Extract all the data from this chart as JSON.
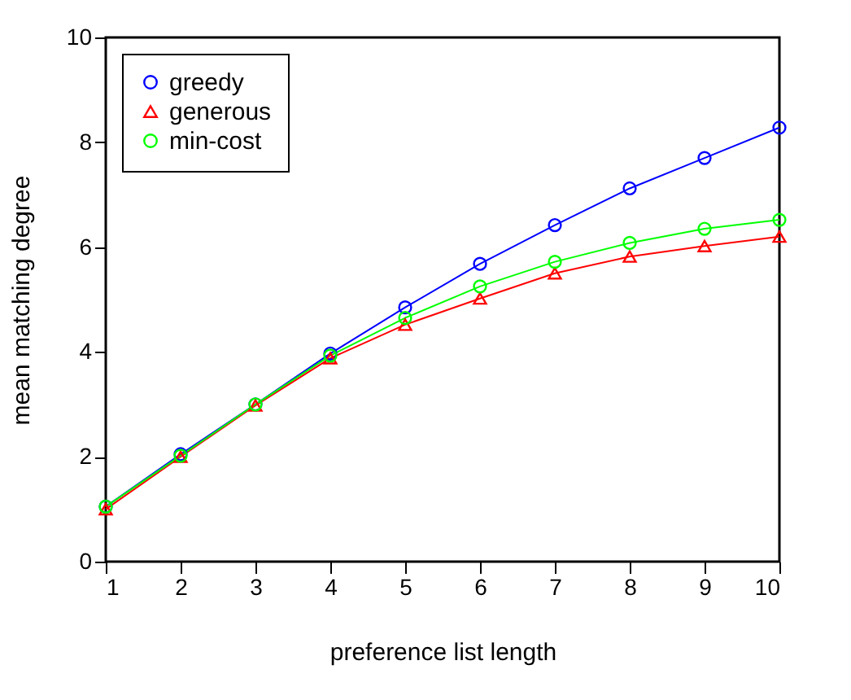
{
  "chart_data": {
    "type": "line",
    "xlabel": "preference list length",
    "ylabel": "mean matching degree",
    "x": [
      1,
      2,
      3,
      4,
      5,
      6,
      7,
      8,
      9,
      10
    ],
    "series": [
      {
        "name": "greedy",
        "color": "#0000ff",
        "marker": "circle",
        "values": [
          1.05,
          2.05,
          3.0,
          3.97,
          4.85,
          5.68,
          6.42,
          7.12,
          7.7,
          8.28
        ]
      },
      {
        "name": "generous",
        "color": "#ff0000",
        "marker": "triangle",
        "values": [
          1.0,
          2.0,
          2.98,
          3.88,
          4.52,
          5.02,
          5.5,
          5.82,
          6.02,
          6.2
        ]
      },
      {
        "name": "min-cost",
        "color": "#00ff00",
        "marker": "circle",
        "values": [
          1.05,
          2.02,
          3.0,
          3.93,
          4.65,
          5.25,
          5.72,
          6.08,
          6.35,
          6.52
        ]
      }
    ],
    "xlim": [
      1,
      10
    ],
    "xticks": [
      1,
      2,
      3,
      4,
      5,
      6,
      7,
      8,
      9,
      10
    ],
    "ylim": [
      0,
      10
    ],
    "yticks": [
      0,
      2,
      4,
      6,
      8,
      10
    ],
    "grid": false,
    "legend": "top left",
    "line_style": "solid"
  }
}
